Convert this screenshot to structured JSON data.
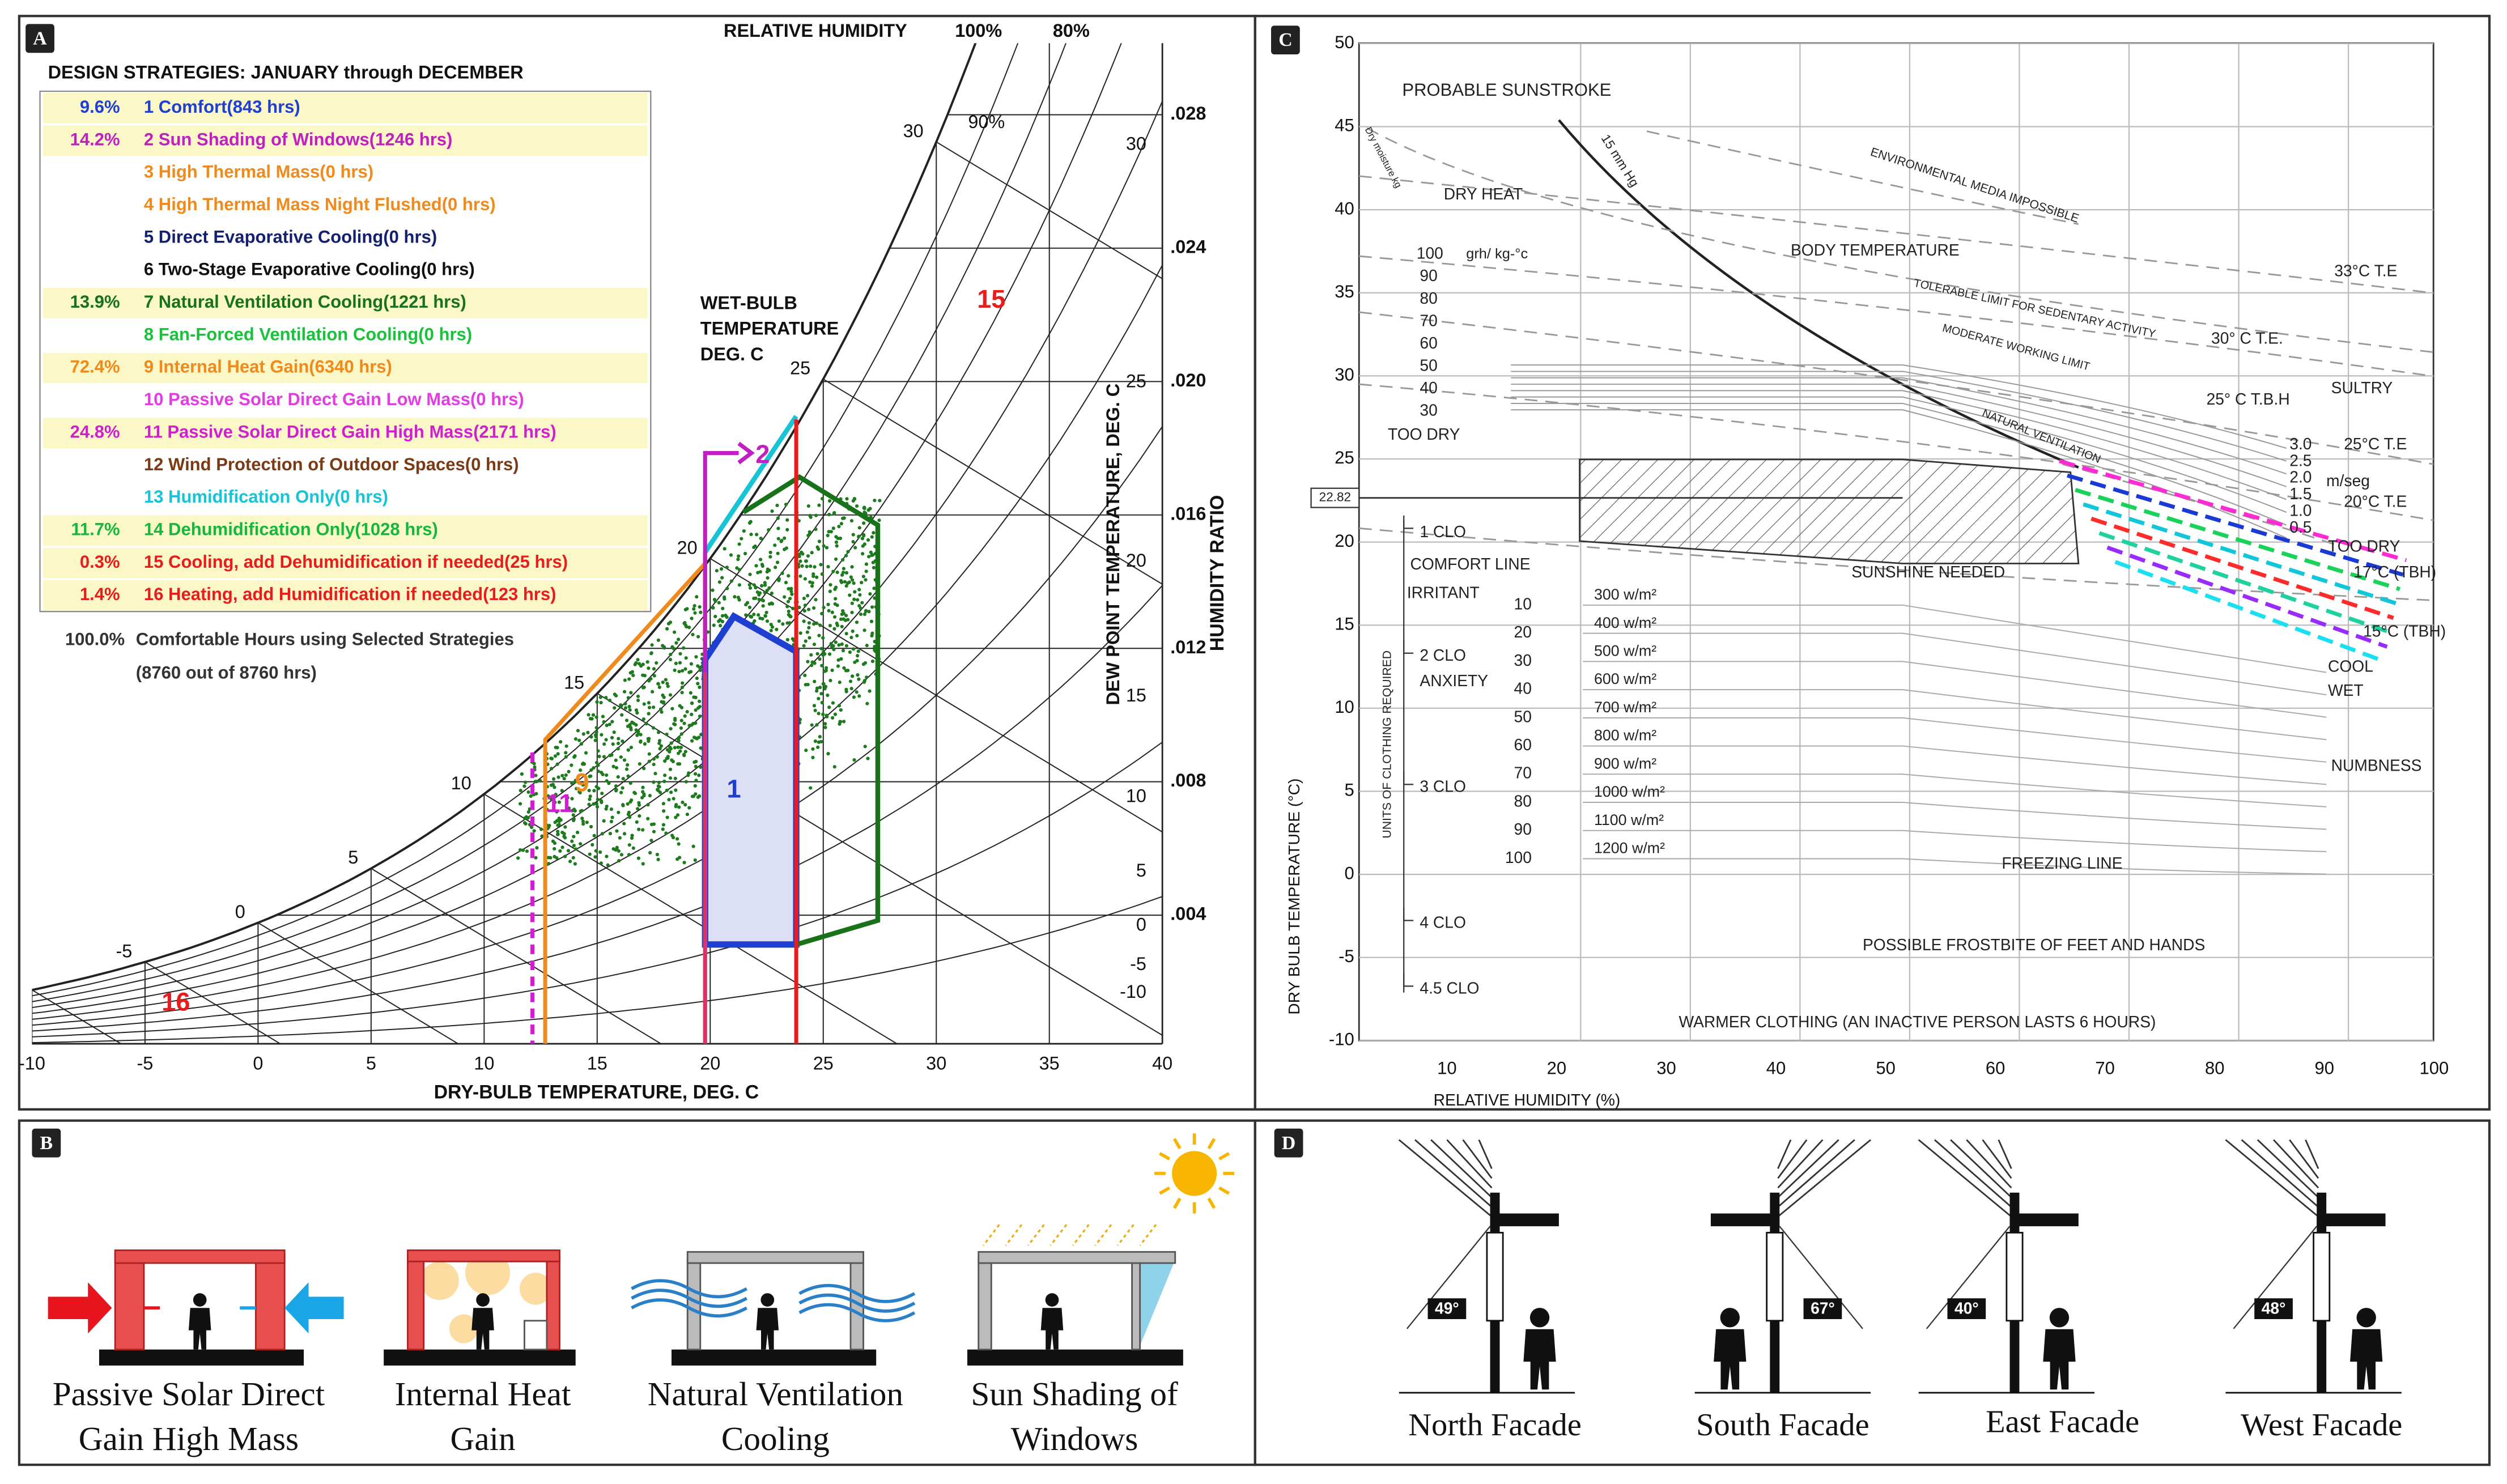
{
  "panel_a": {
    "label": "A",
    "relative_humidity": "RELATIVE HUMIDITY",
    "rh_labels": [
      "100%",
      "80%",
      "90%"
    ],
    "legend_title": "DESIGN STRATEGIES:  JANUARY through DECEMBER",
    "strategies": [
      {
        "percent": "9.6%",
        "name": "1 Comfort(843 hrs)",
        "color": "#1f3fd1"
      },
      {
        "percent": "14.2%",
        "name": "2 Sun Shading of Windows(1246 hrs)",
        "color": "#c21fc2"
      },
      {
        "name": "3 High Thermal Mass(0 hrs)",
        "color": "#f08a1c"
      },
      {
        "name": "4 High Thermal Mass Night Flushed(0 hrs)",
        "color": "#f08a1c"
      },
      {
        "name": "5 Direct Evaporative Cooling(0 hrs)",
        "color": "#14206e"
      },
      {
        "name": "6 Two-Stage Evaporative Cooling(0 hrs)",
        "color": "#111111"
      },
      {
        "percent": "13.9%",
        "name": "7 Natural Ventilation Cooling(1221 hrs)",
        "color": "#17721a"
      },
      {
        "name": "8 Fan-Forced Ventilation Cooling(0 hrs)",
        "color": "#19c23a"
      },
      {
        "percent": "72.4%",
        "name": "9 Internal Heat Gain(6340 hrs)",
        "color": "#f08a1c"
      },
      {
        "name": "10 Passive Solar Direct Gain Low Mass(0 hrs)",
        "color": "#e23ce2"
      },
      {
        "percent": "24.8%",
        "name": "11 Passive Solar Direct Gain High Mass(2171 hrs)",
        "color": "#d01fd0"
      },
      {
        "name": "12 Wind Protection of Outdoor Spaces(0 hrs)",
        "color": "#7a3a14"
      },
      {
        "name": "13 Humidification Only(0 hrs)",
        "color": "#16c4d6"
      },
      {
        "percent": "11.7%",
        "name": "14 Dehumidification Only(1028 hrs)",
        "color": "#15b83e"
      },
      {
        "percent": "0.3%",
        "name": "15 Cooling, add Dehumidification if needed(25 hrs)",
        "color": "#e81c1c"
      },
      {
        "percent": "1.4%",
        "name": "16 Heating, add Humidification if needed(123 hrs)",
        "color": "#e81c1c"
      }
    ],
    "summary_percent": "100.0%",
    "summary": "Comfortable Hours using Selected Strategies",
    "summary_detail": "(8760 out of 8760 hrs)",
    "wet_bulb_title": [
      "WET-BULB",
      "TEMPERATURE",
      "DEG. C"
    ],
    "x_label": "DRY-BULB TEMPERATURE, DEG. C",
    "x_ticks": [
      "-10",
      "-5",
      "0",
      "5",
      "10",
      "15",
      "20",
      "25",
      "30",
      "35",
      "40"
    ],
    "humidity_ratio_label": "HUMIDITY RATIO",
    "humidity_ratio_ticks": [
      ".028",
      ".024",
      ".020",
      ".016",
      ".012",
      ".008",
      ".004"
    ],
    "dew_point_label": "DEW POINT TEMPERATURE, DEG. C",
    "dew_point_ticks": [
      "30",
      "25",
      "20",
      "15",
      "10",
      "5",
      "0",
      "-5",
      "-10"
    ],
    "wet_bulb_ticks": [
      "30",
      "25",
      "20",
      "15",
      "10",
      "5",
      "0",
      "-5"
    ],
    "zone_labels": [
      "15",
      "16",
      "2",
      "1",
      "9",
      "11"
    ]
  },
  "panel_b": {
    "label": "B",
    "items": [
      {
        "caption": [
          "Passive Solar Direct",
          "Gain High Mass"
        ]
      },
      {
        "caption": [
          "Internal Heat",
          "Gain"
        ]
      },
      {
        "caption": [
          "Natural Ventilation",
          "Cooling"
        ]
      },
      {
        "caption": [
          "Sun Shading of",
          "Windows"
        ]
      }
    ]
  },
  "panel_c": {
    "label": "C",
    "y_ticks": [
      "50",
      "45",
      "40",
      "35",
      "30",
      "25",
      "20",
      "15",
      "10",
      "5",
      "0",
      "-5",
      "-10"
    ],
    "x_ticks": [
      "10",
      "20",
      "30",
      "40",
      "50",
      "60",
      "70",
      "80",
      "90",
      "100"
    ],
    "x_label": "RELATIVE HUMIDITY (%)",
    "y_label": "DRY BULB TEMPERATURE (°C)",
    "labels": [
      "PROBABLE SUNSTROKE",
      "15 mm Hg",
      "ENVIRONMENTAL MEDIA IMPOSSIBLE",
      "Dry moisture kg",
      "DRY HEAT",
      "grh/ kg-°c",
      "BODY TEMPERATURE",
      "TOLERABLE LIMIT FOR SEDENTARY ACTIVITY",
      "MODERATE WORKING LIMIT",
      "NATURAL VENTILATION",
      "33°C  T.E",
      "30° C  T.E.",
      "25° C  T.B.H",
      "SULTRY",
      "25°C  T.E",
      "m/seg",
      "20°C  T.E",
      "TOO DRY",
      "TOO DRY",
      "COMFORT LINE",
      "IRRITANT",
      "ANXIETY",
      "SUNSHINE NEEDED",
      "17°C (TBH)",
      "15°C (TBH)",
      "COOL",
      "WET",
      "NUMBNESS",
      "FREEZING LINE",
      "POSSIBLE FROSTBITE OF FEET AND HANDS",
      "WARMER CLOTHING (AN INACTIVE PERSON LASTS 6 HOURS)",
      "22.82",
      "1  CLO",
      "2  CLO",
      "3  CLO",
      "4  CLO",
      "4.5  CLO",
      "UNITS OF CLOTHING REQUIRED"
    ],
    "moisture": [
      "100",
      "90",
      "80",
      "70",
      "60",
      "50",
      "40",
      "30"
    ],
    "wind": [
      "3.0",
      "2.5",
      "2.0",
      "1.5",
      "1.0",
      "0.5"
    ],
    "radiation_levels": [
      "10",
      "20",
      "30",
      "40",
      "50",
      "60",
      "70",
      "80",
      "90",
      "100"
    ],
    "radiation": [
      "300 w/m²",
      "400 w/m²",
      "500 w/m²",
      "600 w/m²",
      "700 w/m²",
      "800 w/m²",
      "900 w/m²",
      "1000 w/m²",
      "1100 w/m²",
      "1200 w/m²"
    ]
  },
  "panel_d": {
    "label": "D",
    "facades": [
      {
        "name": "North Facade",
        "angle": "49°"
      },
      {
        "name": "South Facade",
        "angle": "67°"
      },
      {
        "name": "East Facade",
        "angle": "40°"
      },
      {
        "name": "West Facade",
        "angle": "48°"
      }
    ]
  }
}
